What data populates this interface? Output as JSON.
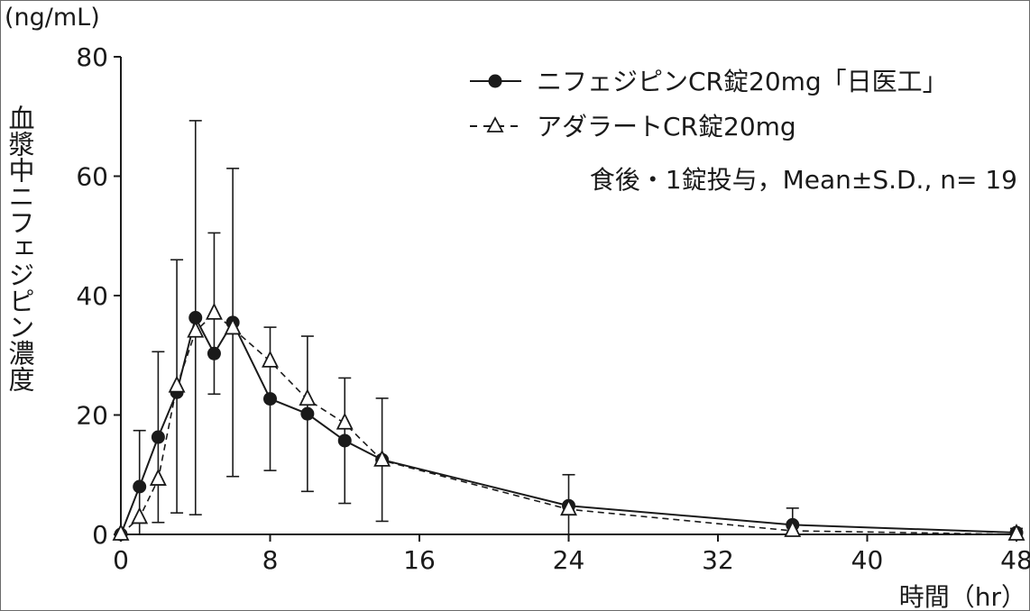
{
  "chart_data": {
    "type": "line",
    "unit_label": "(ng/mL)",
    "ylabel": "血漿中ニフェジピン濃度",
    "xlabel": "時間（hr）",
    "xlim": [
      0,
      48
    ],
    "ylim": [
      0,
      80
    ],
    "xticks": [
      0,
      8,
      16,
      24,
      32,
      40,
      48
    ],
    "yticks": [
      0,
      20,
      40,
      60,
      80
    ],
    "grid": false,
    "legend_position": "top-right",
    "annotation": "食後・1錠投与，Mean±S.D., n= 19",
    "series": [
      {
        "name": "ニフェジピンCR錠20mg「日医工」",
        "marker": "filled-circle",
        "line": "solid",
        "x": [
          0,
          1,
          2,
          3,
          4,
          5,
          6,
          8,
          10,
          12,
          14,
          24,
          36,
          48
        ],
        "y": [
          0,
          8.0,
          16.3,
          23.8,
          36.3,
          30.3,
          35.5,
          22.7,
          20.2,
          15.7,
          12.5,
          4.8,
          1.6,
          0.3
        ],
        "err": [
          0,
          9.4,
          14.3,
          0,
          33.0,
          0,
          25.8,
          12.0,
          13.0,
          10.5,
          10.3,
          5.2,
          2.8,
          0.7
        ]
      },
      {
        "name": "アダラートCR錠20mg",
        "marker": "open-triangle",
        "line": "dashed",
        "x": [
          0,
          1,
          2,
          3,
          4,
          5,
          6,
          8,
          10,
          12,
          14,
          24,
          36,
          48
        ],
        "y": [
          0,
          2.8,
          9.2,
          24.8,
          34.0,
          37.0,
          34.5,
          29.0,
          22.6,
          18.6,
          12.4,
          4.2,
          0.6,
          0
        ],
        "err": [
          0,
          0,
          0,
          21.2,
          0,
          13.5,
          0,
          0,
          0,
          0,
          0,
          0,
          0,
          0
        ]
      }
    ]
  }
}
